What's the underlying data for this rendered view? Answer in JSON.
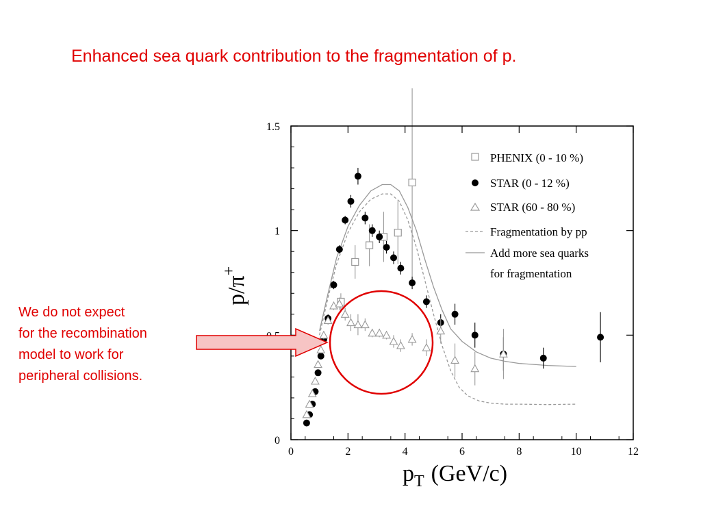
{
  "slide": {
    "title": "Enhanced sea quark contribution to the fragmentation of p.",
    "note_lines": [
      "We do not expect",
      "for the recombination",
      "model to work for",
      "peripheral collisions."
    ]
  },
  "colors": {
    "accent_red": "#e00000",
    "arrow_fill": "#f7c4c4",
    "axis": "#000000",
    "phenix": "#999999",
    "star_central": "#000000",
    "star_peripheral": "#999999",
    "fragmentation_curve": "#999999",
    "sea_quark_curve": "#999999"
  },
  "chart_data": {
    "type": "scatter",
    "title": "",
    "xlabel": "p",
    "xlabel_subscript": "T",
    "xlabel_unit": "(GeV/c)",
    "ylabel": "p/π",
    "ylabel_superscript": "+",
    "xlim": [
      0,
      12
    ],
    "ylim": [
      0,
      1.5
    ],
    "xticks": [
      0,
      2,
      4,
      6,
      8,
      10,
      12
    ],
    "yticks": [
      0,
      0.5,
      1,
      1.5
    ],
    "ytick_labels": [
      "0",
      "0.5",
      "1",
      "1.5"
    ],
    "grid": false,
    "legend_position": "top-right",
    "series": [
      {
        "name": "PHENIX (0 - 10 %)",
        "marker": "open-square",
        "points": [
          {
            "x": 1.75,
            "y": 0.66,
            "err": 0.04
          },
          {
            "x": 2.25,
            "y": 0.85,
            "err": 0.08
          },
          {
            "x": 2.75,
            "y": 0.93,
            "err": 0.1
          },
          {
            "x": 3.25,
            "y": 0.97,
            "err": 0.12
          },
          {
            "x": 3.75,
            "y": 0.99,
            "err": 0.15
          },
          {
            "x": 4.25,
            "y": 1.23,
            "err": 0.45
          }
        ]
      },
      {
        "name": "STAR (0 - 12 %)",
        "marker": "filled-circle",
        "points": [
          {
            "x": 0.55,
            "y": 0.08,
            "err": 0
          },
          {
            "x": 0.65,
            "y": 0.12,
            "err": 0
          },
          {
            "x": 0.75,
            "y": 0.17,
            "err": 0
          },
          {
            "x": 0.85,
            "y": 0.23,
            "err": 0
          },
          {
            "x": 0.95,
            "y": 0.32,
            "err": 0
          },
          {
            "x": 1.05,
            "y": 0.4,
            "err": 0
          },
          {
            "x": 1.15,
            "y": 0.48,
            "err": 0
          },
          {
            "x": 1.3,
            "y": 0.58,
            "err": 0.02
          },
          {
            "x": 1.5,
            "y": 0.74,
            "err": 0.02
          },
          {
            "x": 1.7,
            "y": 0.91,
            "err": 0.02
          },
          {
            "x": 1.9,
            "y": 1.05,
            "err": 0.02
          },
          {
            "x": 2.1,
            "y": 1.14,
            "err": 0.03
          },
          {
            "x": 2.35,
            "y": 1.26,
            "err": 0.04
          },
          {
            "x": 2.6,
            "y": 1.06,
            "err": 0.03
          },
          {
            "x": 2.85,
            "y": 1.0,
            "err": 0.03
          },
          {
            "x": 3.1,
            "y": 0.97,
            "err": 0.03
          },
          {
            "x": 3.35,
            "y": 0.92,
            "err": 0.03
          },
          {
            "x": 3.6,
            "y": 0.87,
            "err": 0.03
          },
          {
            "x": 3.85,
            "y": 0.82,
            "err": 0.03
          },
          {
            "x": 4.25,
            "y": 0.75,
            "err": 0.03
          },
          {
            "x": 4.75,
            "y": 0.66,
            "err": 0.03
          },
          {
            "x": 5.25,
            "y": 0.56,
            "err": 0.04
          },
          {
            "x": 5.75,
            "y": 0.6,
            "err": 0.05
          },
          {
            "x": 6.45,
            "y": 0.5,
            "err": 0.06
          },
          {
            "x": 7.45,
            "y": 0.41,
            "err": 0.08
          },
          {
            "x": 8.85,
            "y": 0.39,
            "err": 0.05
          },
          {
            "x": 10.85,
            "y": 0.49,
            "err": 0.12
          }
        ]
      },
      {
        "name": "STAR (60 - 80 %)",
        "marker": "open-triangle",
        "points": [
          {
            "x": 0.55,
            "y": 0.12,
            "err": 0
          },
          {
            "x": 0.65,
            "y": 0.17,
            "err": 0
          },
          {
            "x": 0.75,
            "y": 0.22,
            "err": 0
          },
          {
            "x": 0.85,
            "y": 0.28,
            "err": 0
          },
          {
            "x": 0.95,
            "y": 0.36,
            "err": 0
          },
          {
            "x": 1.05,
            "y": 0.43,
            "err": 0
          },
          {
            "x": 1.15,
            "y": 0.5,
            "err": 0.02
          },
          {
            "x": 1.3,
            "y": 0.57,
            "err": 0.02
          },
          {
            "x": 1.5,
            "y": 0.64,
            "err": 0.02
          },
          {
            "x": 1.7,
            "y": 0.65,
            "err": 0.03
          },
          {
            "x": 1.9,
            "y": 0.6,
            "err": 0.03
          },
          {
            "x": 2.1,
            "y": 0.56,
            "err": 0.04
          },
          {
            "x": 2.35,
            "y": 0.55,
            "err": 0.05
          },
          {
            "x": 2.6,
            "y": 0.55,
            "err": 0.03
          },
          {
            "x": 2.85,
            "y": 0.51,
            "err": 0.02
          },
          {
            "x": 3.1,
            "y": 0.51,
            "err": 0.02
          },
          {
            "x": 3.35,
            "y": 0.5,
            "err": 0.02
          },
          {
            "x": 3.6,
            "y": 0.47,
            "err": 0.03
          },
          {
            "x": 3.85,
            "y": 0.45,
            "err": 0.03
          },
          {
            "x": 4.25,
            "y": 0.48,
            "err": 0.03
          },
          {
            "x": 4.75,
            "y": 0.44,
            "err": 0.04
          },
          {
            "x": 5.25,
            "y": 0.52,
            "err": 0.06
          },
          {
            "x": 5.75,
            "y": 0.38,
            "err": 0.08
          },
          {
            "x": 6.45,
            "y": 0.34,
            "err": 0.08
          },
          {
            "x": 7.45,
            "y": 0.41,
            "err": 0.12
          }
        ]
      }
    ],
    "curves": [
      {
        "name": "Fragmentation by pp",
        "style": "dashed",
        "x": [
          1,
          1.3,
          1.6,
          2.0,
          2.4,
          2.8,
          3.2,
          3.5,
          3.8,
          4.1,
          4.4,
          4.7,
          5.0,
          5.3,
          5.6,
          5.9,
          6.2,
          6.6,
          7.0,
          7.5,
          8.0,
          9.0,
          10.0
        ],
        "y": [
          0.5,
          0.68,
          0.84,
          0.99,
          1.09,
          1.15,
          1.175,
          1.175,
          1.14,
          1.05,
          0.92,
          0.76,
          0.6,
          0.45,
          0.33,
          0.25,
          0.21,
          0.185,
          0.175,
          0.17,
          0.17,
          0.168,
          0.17
        ]
      },
      {
        "name": "Add more sea quarks",
        "style": "solid",
        "x": [
          1,
          1.3,
          1.6,
          2.0,
          2.4,
          2.8,
          3.2,
          3.5,
          3.8,
          4.1,
          4.4,
          4.7,
          5.0,
          5.3,
          5.6,
          6.0,
          6.5,
          7.0,
          7.5,
          8.0,
          9.0,
          10.0
        ],
        "y": [
          0.52,
          0.7,
          0.87,
          1.02,
          1.12,
          1.19,
          1.22,
          1.22,
          1.19,
          1.11,
          1.0,
          0.86,
          0.73,
          0.62,
          0.53,
          0.47,
          0.42,
          0.39,
          0.375,
          0.365,
          0.355,
          0.35
        ]
      }
    ],
    "legend": {
      "phenix": "PHENIX (0 - 10 %)",
      "star_central": "STAR (0 - 12 %)",
      "star_peripheral": "STAR (60 - 80 %)",
      "fragmentation": "Fragmentation by pp",
      "sea_line1": "Add more sea quarks",
      "sea_line2": "for fragmentation"
    }
  }
}
